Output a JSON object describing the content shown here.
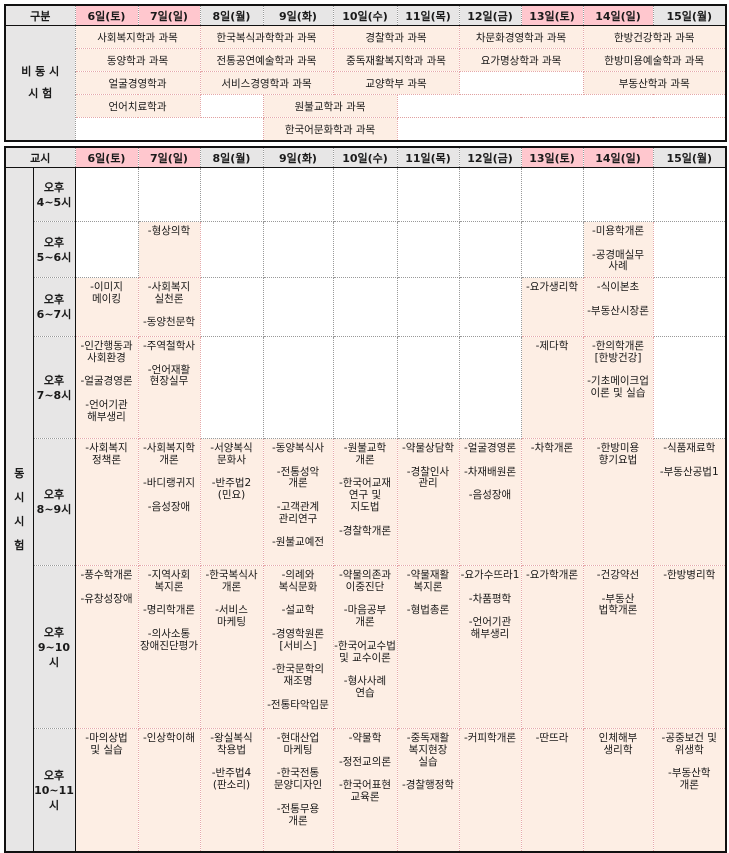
{
  "colors": {
    "weekend_header": "#ffc7ce",
    "header": "#e7e6e6",
    "highlight": "#fdeee4"
  },
  "top": {
    "header_label": "구분",
    "section_label": "비 동 시\n시 험",
    "days": [
      "6일(토)",
      "7일(일)",
      "8일(월)",
      "9일(화)",
      "10일(수)",
      "11일(목)",
      "12일(금)",
      "13일(토)",
      "14일(일)",
      "15일(월)"
    ],
    "weekend": [
      true,
      true,
      false,
      false,
      false,
      false,
      false,
      true,
      true,
      false
    ],
    "rows": [
      [
        {
          "text": "사회복지학과 과목",
          "span": 2
        },
        {
          "text": "한국복식과학학과 과목",
          "span": 2
        },
        {
          "text": "경찰학과 과목",
          "span": 2
        },
        {
          "text": "차문화경영학과 과목",
          "span": 2
        },
        {
          "text": "한방건강학과 과목",
          "span": 2
        }
      ],
      [
        {
          "text": "동양학과 과목",
          "span": 2
        },
        {
          "text": "전통공연예술학과 과목",
          "span": 2
        },
        {
          "text": "중독재활복지학과 과목",
          "span": 2
        },
        {
          "text": "요가명상학과 과목",
          "span": 2
        },
        {
          "text": "한방미용예술학과 과목",
          "span": 2
        }
      ],
      [
        {
          "text": "얼굴경영학과",
          "span": 2
        },
        {
          "text": "서비스경영학과 과목",
          "span": 2
        },
        {
          "text": "교양학부 과목",
          "span": 2
        },
        {
          "text": "",
          "span": 2,
          "empty": true
        },
        {
          "text": "부동산학과 과목",
          "span": 2
        }
      ],
      [
        {
          "text": "언어치료학과",
          "span": 2
        },
        {
          "text": "",
          "span": 1,
          "empty": true
        },
        {
          "text": "원불교학과 과목",
          "span": 2
        },
        {
          "text": "",
          "span": 5,
          "empty": true
        }
      ],
      [
        {
          "text": "",
          "span": 3,
          "empty": true
        },
        {
          "text": "한국어문화학과 과목",
          "span": 2
        },
        {
          "text": "",
          "span": 5,
          "empty": true
        }
      ]
    ]
  },
  "bottom": {
    "header_label": "교시",
    "section_label": "동\n시\n시\n험",
    "days": [
      "6일(토)",
      "7일(일)",
      "8일(월)",
      "9일(화)",
      "10일(수)",
      "11일(목)",
      "12일(금)",
      "13일(토)",
      "14일(일)",
      "15일(월)"
    ],
    "rows": [
      {
        "time": "오후\n4~5시",
        "highlight": [
          false,
          false,
          false,
          false,
          false,
          false,
          false,
          false,
          false,
          false
        ],
        "cells": [
          "",
          "",
          "",
          "",
          "",
          "",
          "",
          "",
          "",
          ""
        ]
      },
      {
        "time": "오후\n5~6시",
        "highlight": [
          false,
          true,
          false,
          false,
          false,
          false,
          false,
          false,
          true,
          false
        ],
        "cells": [
          "",
          "-형상의학",
          "",
          "",
          "",
          "",
          "",
          "",
          "-미용학개론\n\n-공경매실무\n사례",
          ""
        ]
      },
      {
        "time": "오후\n6~7시",
        "highlight": [
          true,
          true,
          false,
          false,
          false,
          false,
          false,
          true,
          true,
          false
        ],
        "cells": [
          "-이미지\n메이킹",
          "-사회복지\n실천론\n\n-동양천문학",
          "",
          "",
          "",
          "",
          "",
          "-요가생리학",
          "-식이본초\n\n-부동산시장론",
          ""
        ]
      },
      {
        "time": "오후\n7~8시",
        "highlight": [
          true,
          true,
          false,
          false,
          false,
          false,
          false,
          true,
          true,
          false
        ],
        "cells": [
          "-인간행동과\n사회환경\n\n-얼굴경영론\n\n-언어기관\n해부생리",
          "-주역철학사\n\n-언어재활\n현장실무",
          "",
          "",
          "",
          "",
          "",
          "-제다학",
          "-한의학개론\n[한방건강]\n\n-기초메이크업\n이론 및 실습",
          ""
        ]
      },
      {
        "time": "오후\n8~9시",
        "highlight": [
          true,
          true,
          true,
          true,
          true,
          true,
          true,
          true,
          true,
          true
        ],
        "cells": [
          "-사회복지\n정책론",
          "-사회복지학\n개론\n\n-바디랭귀지\n\n-음성장애",
          "-서양복식\n문화사\n\n-반주법2\n(민요)",
          "-동양복식사\n\n-전통성악\n개론\n\n-고객관계\n관리연구\n\n-원불교예전",
          "-원불교학\n개론\n\n-한국어교재\n연구 및\n지도법\n\n-경찰학개론",
          "-약물상담학\n\n-경찰인사\n관리",
          "-얼굴경영론\n\n-차재배원론\n\n-음성장애",
          "-차학개론",
          "-한방미용\n향기요법",
          "-식품재료학\n\n-부동산공법1"
        ]
      },
      {
        "time": "오후\n9~10시",
        "highlight": [
          true,
          true,
          true,
          true,
          true,
          true,
          true,
          true,
          true,
          true
        ],
        "cells": [
          "-풍수학개론\n\n-유창성장애",
          "-지역사회\n복지론\n\n-명리학개론\n\n-의사소통\n장애진단평가",
          "-한국복식사\n개론\n\n-서비스\n마케팅",
          "-의례와\n복식문화\n\n-설교학\n\n-경영학원론\n[서비스]\n\n-한국문학의\n재조명\n\n-전통타악입문",
          "-약물의존과\n이중진단\n\n-마음공부\n개론\n\n-한국어교수법\n및 교수이론\n\n-형사사례\n연습",
          "-약물재활\n복지론\n\n-형법총론",
          "-요가수뜨라1\n\n-차품평학\n\n-언어기관\n해부생리",
          "-요가학개론",
          "-건강약선\n\n-부동산\n법학개론",
          "-한방병리학"
        ]
      },
      {
        "time": "오후\n10~11시",
        "highlight": [
          true,
          true,
          true,
          true,
          true,
          true,
          true,
          true,
          true,
          true
        ],
        "cells": [
          "-마의상법\n및 실습",
          "-인상학이해",
          "-왕실복식\n착용법\n\n-반주법4\n(판소리)",
          "-현대산업\n마케팅\n\n-한국전통\n문양디자인\n\n-전통무용\n개론",
          "-약물학\n\n-정전교의론\n\n-한국어표현\n교육론",
          "-중독재활\n복지현장\n실습\n\n-경찰행정학",
          "-커피학개론",
          "-딴뜨라",
          "인체해부\n생리학",
          "-공중보건 및\n위생학\n\n-부동산학\n개론"
        ]
      }
    ]
  }
}
